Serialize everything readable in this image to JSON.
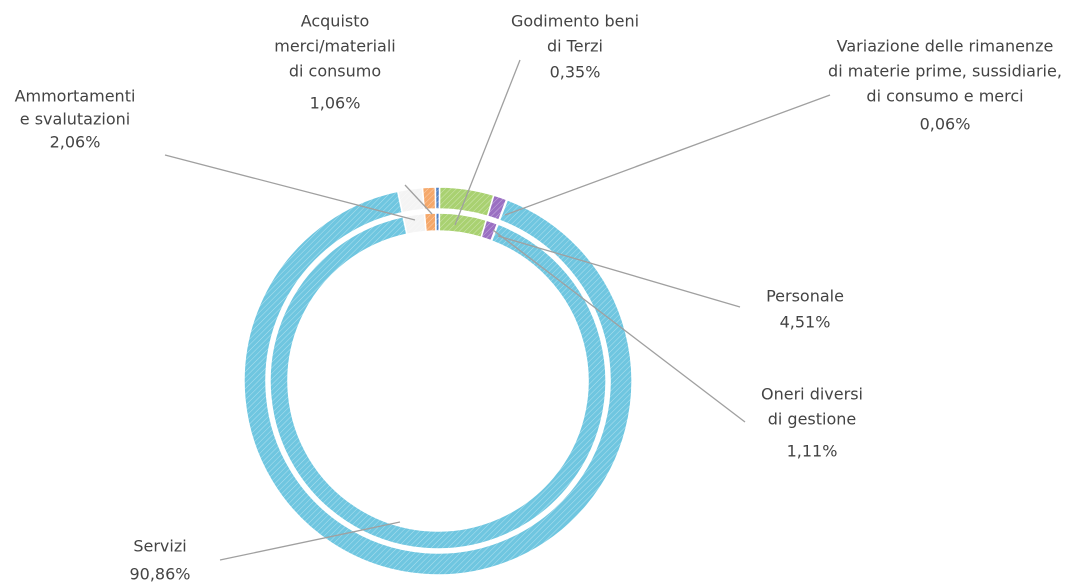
{
  "chart_data": {
    "type": "donut",
    "categories": [
      [
        "Ammortamenti",
        "e svalutazioni"
      ],
      [
        "Acquisto",
        "merci/materiali",
        "di consumo"
      ],
      [
        "Godimento beni",
        "di Terzi"
      ],
      [
        "Personale"
      ],
      [
        "Oneri diversi",
        "di gestione"
      ],
      [
        "Variazione delle rimanenze",
        "di materie prime, sussidiarie,",
        "di consumo e merci"
      ],
      [
        "Servizi"
      ]
    ],
    "values": [
      2.06,
      1.06,
      0.35,
      4.51,
      1.11,
      0.06,
      90.86
    ],
    "value_labels": [
      "2,06%",
      "1,06%",
      "0,35%",
      "4,51%",
      "1,11%",
      "0,06%",
      "90,86%"
    ],
    "colors": [
      "#f4f4f4",
      "#f5a86a",
      "#4f7fc4",
      "#a9d171",
      "#9a6fc2",
      "#f0f0f0",
      "#6fc6e0"
    ]
  }
}
